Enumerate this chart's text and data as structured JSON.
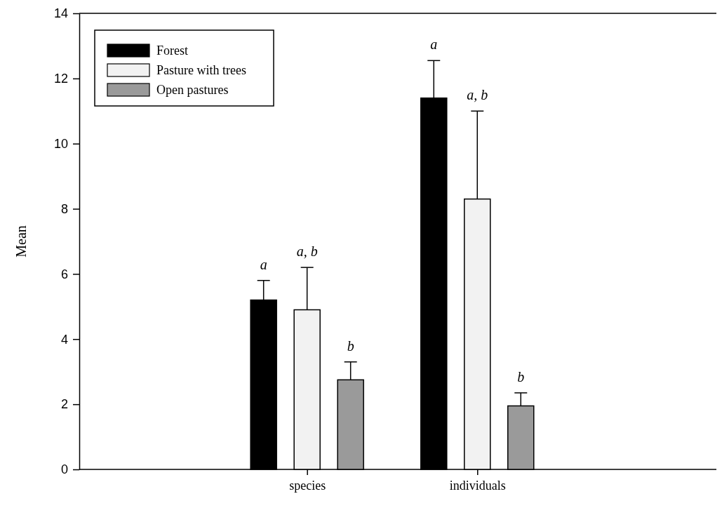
{
  "chart_data": {
    "type": "bar",
    "ylabel": "Mean",
    "categories": [
      "species",
      "individuals"
    ],
    "series": [
      {
        "name": "Forest",
        "color": "#000000",
        "values": [
          5.2,
          11.4
        ],
        "errors": [
          [
            5.2,
            5.8
          ],
          [
            11.4,
            12.55
          ]
        ]
      },
      {
        "name": "Pasture with trees",
        "color": "#f2f2f2",
        "values": [
          4.9,
          8.3
        ],
        "errors": [
          [
            4.9,
            6.2
          ],
          [
            8.3,
            11.0
          ]
        ]
      },
      {
        "name": "Open pastures",
        "color": "#9a9a9a",
        "values": [
          2.75,
          1.95
        ],
        "errors": [
          [
            2.75,
            3.3
          ],
          [
            1.95,
            2.35
          ]
        ]
      }
    ],
    "ylim": [
      0,
      14
    ],
    "yticks": [
      0,
      2,
      4,
      6,
      8,
      10,
      12,
      14
    ],
    "grid": false,
    "legend": "top left",
    "annotations": [
      "a",
      "a, b",
      "b",
      "a",
      "a, b",
      "b"
    ]
  }
}
